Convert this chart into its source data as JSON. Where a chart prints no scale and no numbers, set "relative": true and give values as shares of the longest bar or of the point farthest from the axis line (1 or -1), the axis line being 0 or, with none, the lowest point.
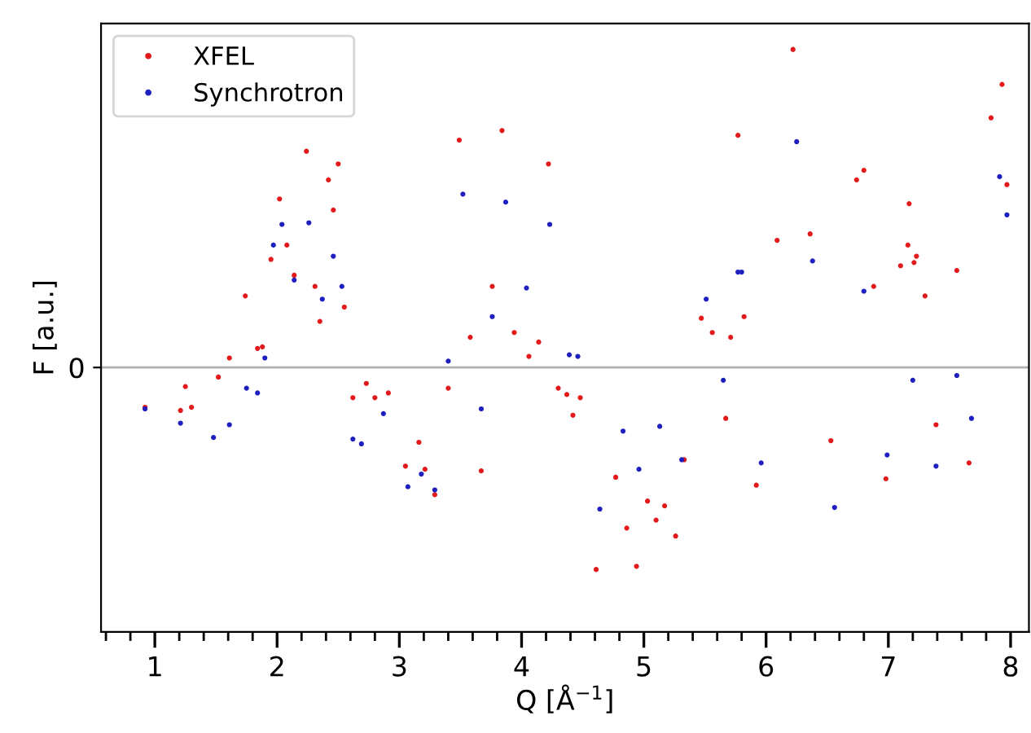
{
  "chart_data": {
    "type": "scatter",
    "relative": true,
    "xlabel": "Q [Å$^{−1}$]",
    "ylabel": "F [a.u.]",
    "marker": "circle",
    "legend": "top left",
    "xlim": [
      0.56,
      8.15
    ],
    "xticks": [
      1,
      2,
      3,
      4,
      5,
      6,
      7,
      8
    ],
    "ref_lines": [
      {
        "axis": "y",
        "value": 0,
        "label": "0",
        "color": "#b0b0b0"
      }
    ],
    "series": [
      {
        "name": "XFEL",
        "color": "#e31a1c",
        "x": [
          0.92,
          1.21,
          1.25,
          1.3,
          1.52,
          1.61,
          1.74,
          1.84,
          1.88,
          1.95,
          2.02,
          2.08,
          2.14,
          2.24,
          2.31,
          2.35,
          2.42,
          2.46,
          2.5,
          2.55,
          2.62,
          2.73,
          2.8,
          2.91,
          3.05,
          3.16,
          3.21,
          3.29,
          3.4,
          3.49,
          3.58,
          3.67,
          3.76,
          3.84,
          3.94,
          4.06,
          4.14,
          4.22,
          4.3,
          4.37,
          4.42,
          4.48,
          4.61,
          4.77,
          4.86,
          4.94,
          5.03,
          5.1,
          5.17,
          5.26,
          5.33,
          5.47,
          5.56,
          5.67,
          5.71,
          5.77,
          5.82,
          5.92,
          6.09,
          6.22,
          6.36,
          6.53,
          6.74,
          6.8,
          6.88,
          6.98,
          7.1,
          7.16,
          7.17,
          7.21,
          7.23,
          7.3,
          7.39,
          7.56,
          7.66,
          7.84,
          7.93,
          7.97
        ],
        "values": [
          -0.125,
          -0.135,
          -0.06,
          -0.125,
          -0.03,
          0.03,
          0.225,
          0.06,
          0.065,
          0.34,
          0.53,
          0.385,
          0.29,
          0.68,
          0.255,
          0.145,
          0.59,
          0.495,
          0.64,
          0.19,
          -0.095,
          -0.05,
          -0.095,
          -0.08,
          -0.31,
          -0.235,
          -0.32,
          -0.4,
          -0.065,
          0.715,
          0.095,
          -0.325,
          0.255,
          0.745,
          0.11,
          0.035,
          0.08,
          0.64,
          -0.065,
          -0.085,
          -0.15,
          -0.095,
          -0.635,
          -0.345,
          -0.505,
          -0.625,
          -0.42,
          -0.48,
          -0.435,
          -0.53,
          -0.29,
          0.155,
          0.11,
          -0.16,
          0.095,
          0.73,
          0.16,
          -0.37,
          0.4,
          1.0,
          0.42,
          -0.23,
          0.59,
          0.62,
          0.255,
          -0.35,
          0.32,
          0.385,
          0.515,
          0.33,
          0.35,
          0.225,
          -0.18,
          0.305,
          -0.3,
          0.785,
          0.89,
          0.575
        ]
      },
      {
        "name": "Synchrotron",
        "color": "#1f1fbf",
        "x": [
          0.92,
          1.21,
          1.48,
          1.61,
          1.75,
          1.84,
          1.9,
          1.97,
          2.04,
          2.14,
          2.26,
          2.37,
          2.46,
          2.53,
          2.62,
          2.69,
          2.87,
          3.07,
          3.18,
          3.29,
          3.4,
          3.52,
          3.67,
          3.76,
          3.87,
          4.04,
          4.23,
          4.39,
          4.46,
          4.64,
          4.83,
          4.96,
          5.13,
          5.31,
          5.51,
          5.65,
          5.77,
          5.8,
          5.96,
          6.25,
          6.38,
          6.56,
          6.8,
          6.99,
          7.2,
          7.39,
          7.56,
          7.68,
          7.91,
          7.97
        ],
        "values": [
          -0.13,
          -0.175,
          -0.22,
          -0.18,
          -0.065,
          -0.08,
          0.03,
          0.385,
          0.45,
          0.275,
          0.455,
          0.215,
          0.35,
          0.255,
          -0.225,
          -0.24,
          -0.145,
          -0.375,
          -0.335,
          -0.385,
          0.02,
          0.545,
          -0.13,
          0.16,
          0.52,
          0.25,
          0.45,
          0.04,
          0.035,
          -0.445,
          -0.2,
          -0.32,
          -0.185,
          -0.29,
          0.215,
          -0.04,
          0.3,
          0.3,
          -0.3,
          0.71,
          0.335,
          -0.44,
          0.24,
          -0.275,
          -0.04,
          -0.31,
          -0.025,
          -0.16,
          0.6,
          0.48
        ]
      }
    ]
  }
}
